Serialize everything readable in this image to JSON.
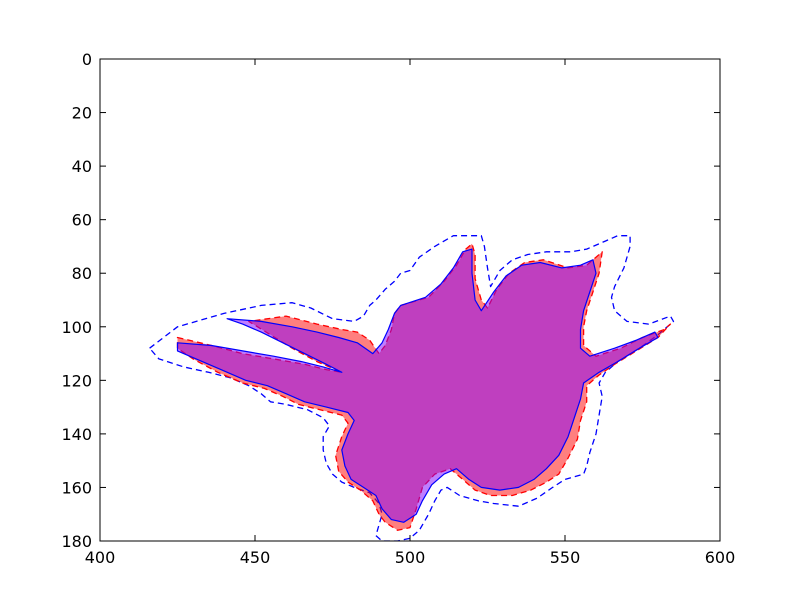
{
  "chart_data": {
    "type": "area",
    "title": "",
    "xlabel": "",
    "ylabel": "",
    "xlim": [
      400,
      600
    ],
    "ylim": [
      180,
      0
    ],
    "y_inverted": true,
    "grid": false,
    "xticks": [
      400,
      450,
      500,
      550,
      600
    ],
    "yticks": [
      0,
      20,
      40,
      60,
      80,
      100,
      120,
      140,
      160,
      180
    ],
    "colors": {
      "red_fill": "#ff0000",
      "red_line": "#ff0000",
      "blue_fill": "#7f00ff",
      "blue_line": "#0000ff",
      "outer_line": "#0000ff"
    },
    "series": [
      {
        "style": "outer-dashed-outline",
        "points": [
          [
            416,
            108
          ],
          [
            425,
            100
          ],
          [
            440,
            95
          ],
          [
            452,
            92
          ],
          [
            462,
            91
          ],
          [
            468,
            93
          ],
          [
            475,
            97
          ],
          [
            482,
            98
          ],
          [
            485,
            96
          ],
          [
            487,
            92
          ],
          [
            489,
            90
          ],
          [
            492,
            86
          ],
          [
            495,
            83
          ],
          [
            497,
            80
          ],
          [
            500,
            79
          ],
          [
            503,
            74
          ],
          [
            508,
            70
          ],
          [
            514,
            66
          ],
          [
            523,
            66
          ],
          [
            524,
            70
          ],
          [
            525,
            78
          ],
          [
            526,
            85
          ],
          [
            529,
            79
          ],
          [
            533,
            75
          ],
          [
            538,
            73
          ],
          [
            544,
            72
          ],
          [
            552,
            72
          ],
          [
            557,
            71
          ],
          [
            563,
            68
          ],
          [
            567,
            66
          ],
          [
            571,
            66
          ],
          [
            571,
            70
          ],
          [
            569,
            78
          ],
          [
            566,
            85
          ],
          [
            565,
            89
          ],
          [
            566,
            94
          ],
          [
            570,
            98
          ],
          [
            577,
            99
          ],
          [
            584,
            96
          ],
          [
            585,
            98
          ],
          [
            580,
            103
          ],
          [
            574,
            108
          ],
          [
            567,
            113
          ],
          [
            563,
            117
          ],
          [
            561,
            121
          ],
          [
            562,
            126
          ],
          [
            561,
            133
          ],
          [
            560,
            140
          ],
          [
            558,
            147
          ],
          [
            557,
            152
          ],
          [
            556,
            155
          ],
          [
            550,
            157
          ],
          [
            546,
            160
          ],
          [
            541,
            164
          ],
          [
            535,
            167
          ],
          [
            527,
            166
          ],
          [
            522,
            165
          ],
          [
            516,
            163
          ],
          [
            512,
            160
          ],
          [
            510,
            161
          ],
          [
            508,
            165
          ],
          [
            506,
            170
          ],
          [
            503,
            176
          ],
          [
            500,
            179
          ],
          [
            496,
            180
          ],
          [
            491,
            180
          ],
          [
            489,
            178
          ],
          [
            490,
            174
          ],
          [
            491,
            170
          ],
          [
            490,
            166
          ],
          [
            487,
            162
          ],
          [
            482,
            160
          ],
          [
            478,
            158
          ],
          [
            475,
            155
          ],
          [
            473,
            151
          ],
          [
            472,
            146
          ],
          [
            472,
            141
          ],
          [
            474,
            137
          ],
          [
            472,
            134
          ],
          [
            467,
            131
          ],
          [
            460,
            129
          ],
          [
            455,
            128
          ],
          [
            452,
            125
          ],
          [
            448,
            122
          ],
          [
            442,
            119
          ],
          [
            435,
            117
          ],
          [
            427,
            115
          ],
          [
            419,
            112
          ],
          [
            416,
            108
          ]
        ]
      },
      {
        "style": "red-fill-dashed",
        "points": [
          [
            425,
            104
          ],
          [
            436,
            107
          ],
          [
            446,
            110
          ],
          [
            456,
            112
          ],
          [
            466,
            114
          ],
          [
            473,
            116
          ],
          [
            478,
            117
          ],
          [
            470,
            113
          ],
          [
            462,
            108
          ],
          [
            455,
            103
          ],
          [
            448,
            98
          ],
          [
            460,
            96
          ],
          [
            470,
            99
          ],
          [
            478,
            101
          ],
          [
            483,
            102
          ],
          [
            487,
            105
          ],
          [
            490,
            110
          ],
          [
            492,
            107
          ],
          [
            494,
            101
          ],
          [
            495,
            95
          ],
          [
            497,
            92
          ],
          [
            506,
            89
          ],
          [
            511,
            83
          ],
          [
            515,
            77
          ],
          [
            518,
            71
          ],
          [
            520,
            69
          ],
          [
            521,
            73
          ],
          [
            521,
            82
          ],
          [
            523,
            90
          ],
          [
            525,
            93
          ],
          [
            528,
            86
          ],
          [
            532,
            80
          ],
          [
            537,
            76
          ],
          [
            543,
            75
          ],
          [
            551,
            78
          ],
          [
            557,
            77
          ],
          [
            560,
            74
          ],
          [
            562,
            72
          ],
          [
            561,
            80
          ],
          [
            559,
            87
          ],
          [
            557,
            94
          ],
          [
            556,
            100
          ],
          [
            556,
            107
          ],
          [
            560,
            111
          ],
          [
            568,
            108
          ],
          [
            575,
            104
          ],
          [
            582,
            101
          ],
          [
            584,
            99
          ],
          [
            580,
            104
          ],
          [
            573,
            109
          ],
          [
            566,
            114
          ],
          [
            561,
            118
          ],
          [
            557,
            122
          ],
          [
            557,
            128
          ],
          [
            555,
            135
          ],
          [
            554,
            142
          ],
          [
            551,
            149
          ],
          [
            548,
            155
          ],
          [
            544,
            158
          ],
          [
            539,
            161
          ],
          [
            533,
            163
          ],
          [
            526,
            163
          ],
          [
            521,
            161
          ],
          [
            517,
            157
          ],
          [
            513,
            153
          ],
          [
            508,
            155
          ],
          [
            504,
            160
          ],
          [
            502,
            168
          ],
          [
            500,
            175
          ],
          [
            496,
            176
          ],
          [
            492,
            173
          ],
          [
            490,
            170
          ],
          [
            488,
            165
          ],
          [
            484,
            161
          ],
          [
            480,
            158
          ],
          [
            477,
            154
          ],
          [
            476,
            148
          ],
          [
            478,
            141
          ],
          [
            480,
            136
          ],
          [
            478,
            133
          ],
          [
            471,
            131
          ],
          [
            464,
            129
          ],
          [
            459,
            126
          ],
          [
            453,
            123
          ],
          [
            446,
            121
          ],
          [
            438,
            117
          ],
          [
            430,
            112
          ],
          [
            425,
            108
          ],
          [
            425,
            104
          ]
        ]
      },
      {
        "style": "blue-fill-solid",
        "points": [
          [
            425,
            106
          ],
          [
            436,
            107
          ],
          [
            446,
            109
          ],
          [
            456,
            111
          ],
          [
            465,
            113
          ],
          [
            472,
            115
          ],
          [
            478,
            117
          ],
          [
            473,
            114
          ],
          [
            466,
            110
          ],
          [
            459,
            106
          ],
          [
            452,
            102
          ],
          [
            446,
            99
          ],
          [
            441,
            97
          ],
          [
            452,
            98
          ],
          [
            462,
            100
          ],
          [
            470,
            102
          ],
          [
            477,
            104
          ],
          [
            483,
            106
          ],
          [
            488,
            110
          ],
          [
            491,
            106
          ],
          [
            493,
            101
          ],
          [
            495,
            95
          ],
          [
            497,
            92
          ],
          [
            505,
            89
          ],
          [
            510,
            84
          ],
          [
            514,
            78
          ],
          [
            517,
            72
          ],
          [
            520,
            71
          ],
          [
            520,
            80
          ],
          [
            521,
            90
          ],
          [
            523,
            94
          ],
          [
            527,
            87
          ],
          [
            531,
            81
          ],
          [
            536,
            77
          ],
          [
            542,
            76
          ],
          [
            549,
            78
          ],
          [
            555,
            77
          ],
          [
            559,
            75
          ],
          [
            560,
            80
          ],
          [
            558,
            87
          ],
          [
            556,
            94
          ],
          [
            555,
            101
          ],
          [
            555,
            108
          ],
          [
            558,
            111
          ],
          [
            566,
            108
          ],
          [
            573,
            105
          ],
          [
            579,
            102
          ],
          [
            580,
            104
          ],
          [
            574,
            108
          ],
          [
            567,
            113
          ],
          [
            561,
            117
          ],
          [
            556,
            121
          ],
          [
            555,
            127
          ],
          [
            553,
            134
          ],
          [
            551,
            141
          ],
          [
            548,
            148
          ],
          [
            544,
            153
          ],
          [
            540,
            157
          ],
          [
            535,
            160
          ],
          [
            529,
            161
          ],
          [
            523,
            160
          ],
          [
            519,
            157
          ],
          [
            515,
            153
          ],
          [
            511,
            155
          ],
          [
            507,
            159
          ],
          [
            504,
            165
          ],
          [
            502,
            170
          ],
          [
            498,
            173
          ],
          [
            494,
            172
          ],
          [
            491,
            168
          ],
          [
            489,
            163
          ],
          [
            485,
            160
          ],
          [
            481,
            157
          ],
          [
            479,
            152
          ],
          [
            478,
            146
          ],
          [
            480,
            140
          ],
          [
            482,
            135
          ],
          [
            480,
            132
          ],
          [
            473,
            130
          ],
          [
            466,
            128
          ],
          [
            460,
            125
          ],
          [
            454,
            122
          ],
          [
            447,
            120
          ],
          [
            439,
            116
          ],
          [
            431,
            112
          ],
          [
            425,
            109
          ],
          [
            425,
            106
          ]
        ]
      }
    ]
  }
}
